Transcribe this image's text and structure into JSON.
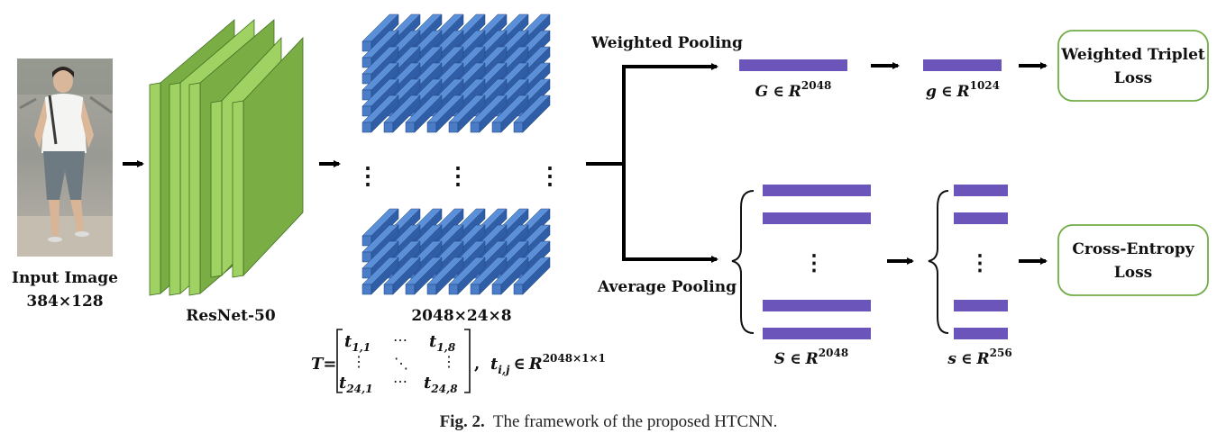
{
  "input": {
    "label_line1": "Input Image",
    "label_line2": "384×128"
  },
  "backbone": {
    "label": "ResNet-50"
  },
  "feature_map": {
    "label": "2048×24×8",
    "vdots": "⋮"
  },
  "matrix": {
    "lhs": "T=",
    "t11_base": "t",
    "t11_sub": "1,1",
    "t18_base": "t",
    "t18_sub": "1,8",
    "t241_base": "t",
    "t241_sub": "24,1",
    "t248_base": "t",
    "t248_sub": "24,8",
    "hdots": "⋯",
    "vdots": "⋮",
    "ddots": "⋱",
    "comma": ",",
    "elem_base": "t",
    "elem_sub": "i,j",
    "elem_in": "∈",
    "elem_space": "R",
    "elem_sup": "2048×1×1"
  },
  "branches": {
    "weighted_label": "Weighted Pooling",
    "average_label": "Average Pooling"
  },
  "global_vectors": {
    "G_sym": "G",
    "G_in": "∈",
    "G_space": "R",
    "G_sup": "2048",
    "g_sym": "g",
    "g_in": "∈",
    "g_space": "R",
    "g_sup": "1024"
  },
  "local_vectors": {
    "S_sym": "S",
    "S_in": "∈",
    "S_space": "R",
    "S_sup": "2048",
    "s_sym": "s",
    "s_in": "∈",
    "s_space": "R",
    "s_sup": "256",
    "vdots": "⋮"
  },
  "losses": {
    "triplet_line1": "Weighted Triplet",
    "triplet_line2": "Loss",
    "ce_line1": "Cross-Entropy",
    "ce_line2": "Loss"
  },
  "caption": {
    "prefix": "Fig. 2.",
    "text": "The framework of the proposed HTCNN."
  },
  "colors": {
    "resnet_dark": "#7aae45",
    "resnet_light": "#9fd163",
    "resnet_stroke": "#3f6e1f",
    "cube_top": "#5b8fd8",
    "cube_front": "#4a7cc7",
    "cube_side": "#2f5ea6",
    "vector_purple": "#6b55bb",
    "loss_border": "#70ad47",
    "arrow": "#000000"
  }
}
